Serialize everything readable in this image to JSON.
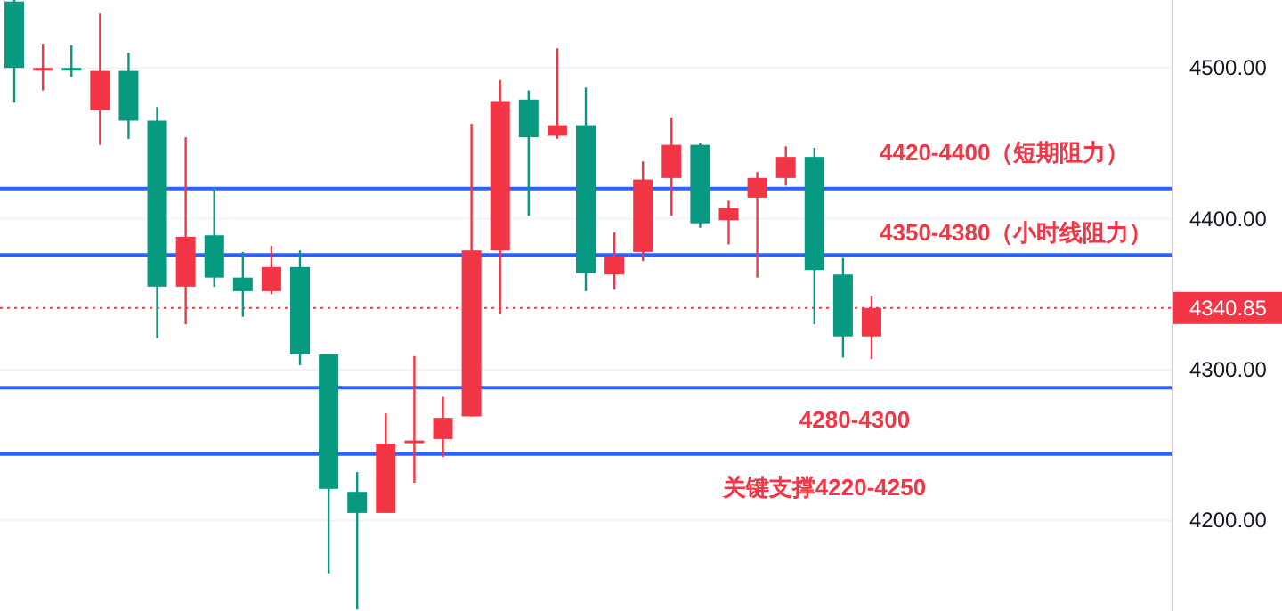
{
  "chart_data": {
    "type": "candlestick",
    "categories": [
      null,
      null,
      null,
      null,
      null,
      null,
      null,
      null,
      null,
      null,
      null,
      null,
      null,
      null,
      null,
      null,
      null,
      null,
      null,
      null,
      null,
      null,
      null,
      null,
      null,
      null,
      null,
      null,
      null,
      null,
      null,
      null,
      null,
      null,
      null,
      null,
      null,
      null,
      null,
      null,
      null
    ],
    "ohlc": [
      [
        4544,
        4545,
        4477,
        4500
      ],
      [
        4499,
        4516,
        4485,
        4500
      ],
      [
        4500,
        4515,
        4494,
        4499
      ],
      [
        4472,
        4536,
        4449,
        4498
      ],
      [
        4498,
        4510,
        4453,
        4465
      ],
      [
        4465,
        4474,
        4321,
        4355
      ],
      [
        4355,
        4454,
        4330,
        4388
      ],
      [
        4389,
        4421,
        4355,
        4361
      ],
      [
        4361,
        4378,
        4335,
        4352
      ],
      [
        4352,
        4382,
        4350,
        4368
      ],
      [
        4368,
        4379,
        4303,
        4310
      ],
      [
        4310,
        4310,
        4165,
        4221
      ],
      [
        4219,
        4232,
        4141,
        4205
      ],
      [
        4205,
        4271,
        4205,
        4251
      ],
      [
        4252,
        4309,
        4225,
        4253
      ],
      [
        4254,
        4282,
        4242,
        4268
      ],
      [
        4269,
        4463,
        4269,
        4379
      ],
      [
        4379,
        4492,
        4337,
        4478
      ],
      [
        4479,
        4485,
        4402,
        4454
      ],
      [
        4455,
        4513,
        4453,
        4462
      ],
      [
        4462,
        4487,
        4352,
        4364
      ],
      [
        4363,
        4391,
        4353,
        4375
      ],
      [
        4378,
        4438,
        4372,
        4426
      ],
      [
        4427,
        4467,
        4402,
        4449
      ],
      [
        4449,
        4450,
        4394,
        4397
      ],
      [
        4399,
        4412,
        4383,
        4407
      ],
      [
        4414,
        4431,
        4361,
        4427
      ],
      [
        4427,
        4448,
        4422,
        4441
      ],
      [
        4441,
        4447,
        4330,
        4366
      ],
      [
        4363,
        4374,
        4308,
        4322
      ],
      [
        4322,
        4349,
        4307,
        4340.85
      ],
      null,
      null,
      null,
      null,
      null,
      null,
      null,
      null,
      null,
      null
    ],
    "ylim": [
      4140,
      4545
    ],
    "yticks": [
      {
        "value": 4200,
        "label": "4200.00"
      },
      {
        "value": 4300,
        "label": "4300.00"
      },
      {
        "value": 4400,
        "label": "4400.00"
      },
      {
        "value": 4500,
        "label": "4500.00"
      }
    ],
    "tick_labels": "y",
    "grid": "y",
    "ref_lines": [
      {
        "axis": "y",
        "value": 4420,
        "color": "#2962ff",
        "line_style": "solid"
      },
      {
        "axis": "y",
        "value": 4376,
        "color": "#2962ff",
        "line_style": "solid"
      },
      {
        "axis": "y",
        "value": 4288,
        "color": "#2962ff",
        "line_style": "solid"
      },
      {
        "axis": "y",
        "value": 4244,
        "color": "#2962ff",
        "line_style": "solid"
      },
      {
        "axis": "y",
        "value": 4340.85,
        "label": "4340.85",
        "color": "#f23645",
        "line_style": "dotted"
      }
    ],
    "annotations": [
      "4420-4400（短期阻力）",
      "4350-4380（小时线阻力）",
      "4280-4300",
      "关键支撑4220-4250"
    ]
  }
}
